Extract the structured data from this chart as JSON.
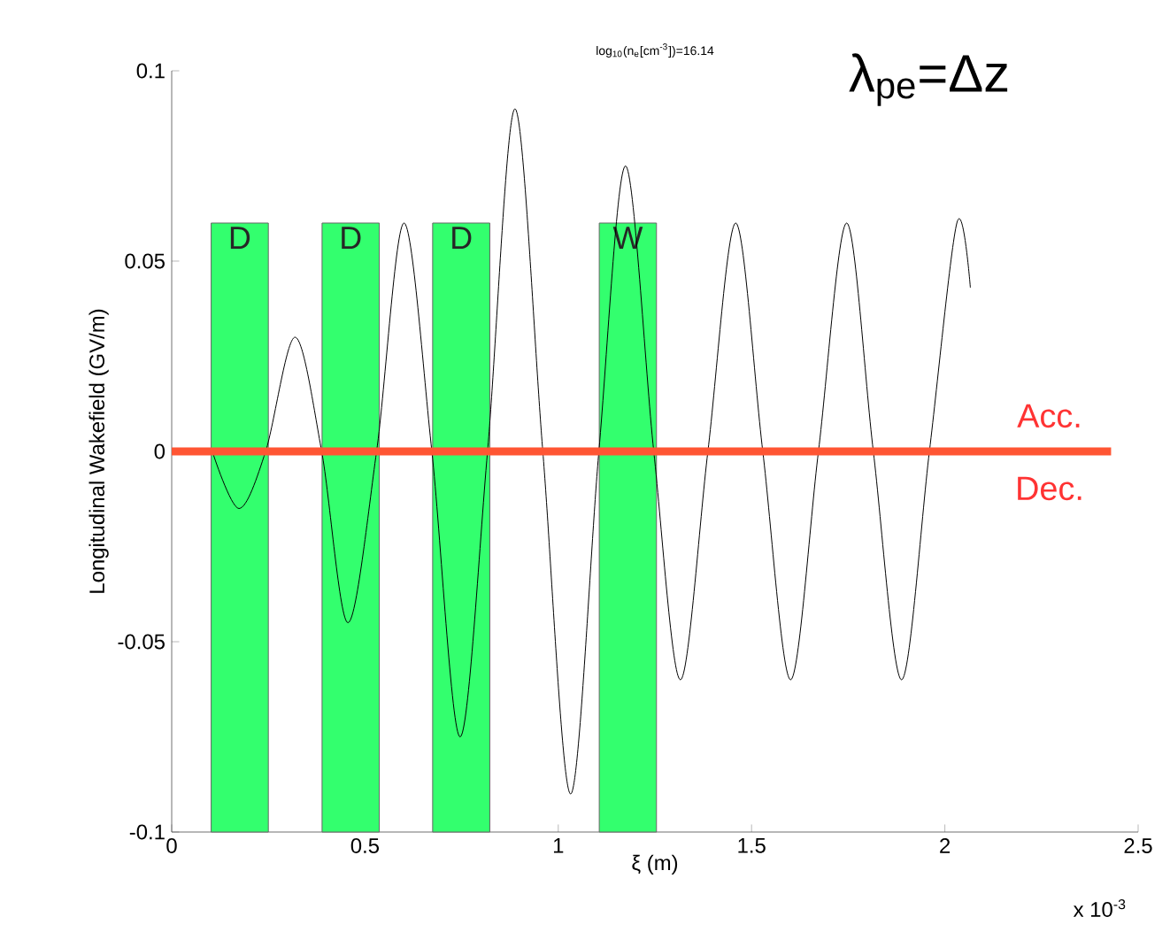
{
  "chart_data": {
    "type": "line",
    "title": "log$_{10}$(n$_{e}$[cm$^{-3}$])=16.14",
    "xlabel": "ξ (m)",
    "ylabel": "Longitudinal Wakefield (GV/m)",
    "xlim": [
      0,
      2.5
    ],
    "ylim": [
      -0.1,
      0.1
    ],
    "xticks": [
      0,
      0.5,
      1,
      1.5,
      2,
      2.5
    ],
    "yticks": [
      -0.1,
      -0.05,
      0,
      0.05,
      0.1
    ],
    "grid": false,
    "series": [
      {
        "type": "bar",
        "color": "#33ff6e",
        "x": [
          0.176,
          0.463,
          0.749,
          1.18
        ],
        "base": [
          -0.1,
          -0.1,
          -0.1,
          -0.1
        ],
        "values": [
          0.16,
          0.16,
          0.16,
          0.16
        ],
        "value_labels": [
          "D",
          "D",
          "D",
          "W"
        ]
      },
      {
        "color": "#000000",
        "x": [
          0.105,
          0.174,
          0.243,
          0.319,
          0.388,
          0.456,
          0.53,
          0.601,
          0.673,
          0.746,
          0.817,
          0.888,
          0.96,
          1.032,
          1.105,
          1.174,
          1.247,
          1.316,
          1.387,
          1.459,
          1.529,
          1.601,
          1.673,
          1.746,
          1.815,
          1.888,
          1.96,
          2.031,
          2.066
        ],
        "values": [
          0,
          -0.015,
          0,
          0.03,
          0,
          -0.045,
          0,
          0.06,
          0,
          -0.075,
          0,
          0.09,
          0,
          -0.09,
          0,
          0.075,
          0,
          -0.06,
          0,
          0.06,
          0,
          -0.06,
          0,
          0.06,
          0,
          -0.06,
          0,
          0.06,
          0.043
        ]
      }
    ],
    "ref_lines": [
      {
        "axis": "y",
        "value": 0,
        "color": "#ff5533"
      }
    ],
    "annotations": [
      "Acc.",
      "Dec.",
      "λ$_{pe}$=Δz",
      "x 10$^{-3}$"
    ]
  }
}
